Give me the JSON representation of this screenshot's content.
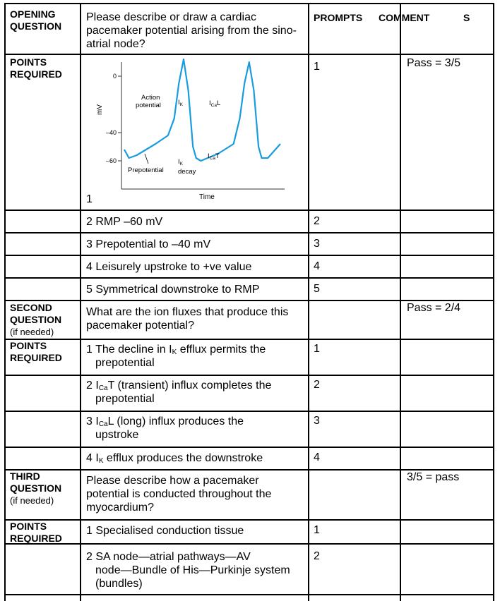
{
  "header": {
    "opening_label_line1": "OPENING",
    "opening_label_line2": "QUESTION",
    "opening_question": "Please describe or draw a cardiac pacemaker potential arising from the sino-atrial node?",
    "prompts_heading": "PROMPTS",
    "comments_heading": "COMMENT",
    "comments_heading_suffix": "S"
  },
  "section1": {
    "label_line1": "POINTS",
    "label_line2": "REQUIRED",
    "pass": "Pass = 3/5",
    "figure_number": "1",
    "points": [
      {
        "num": "2",
        "text": "RMP –60 mV",
        "prompt": "2"
      },
      {
        "num": "3",
        "text": "Prepotential to –40 mV",
        "prompt": "3"
      },
      {
        "num": "4",
        "text": "Leisurely upstroke to +ve value",
        "prompt": "4"
      },
      {
        "num": "5",
        "text": "Symmetrical downstroke to RMP",
        "prompt": "5"
      }
    ],
    "first_prompt": "1"
  },
  "chart_data": {
    "type": "line",
    "title": "",
    "xlabel": "Time",
    "ylabel": "mV",
    "yticks": [
      "0",
      "–40",
      "–60"
    ],
    "ylim": [
      -80,
      10
    ],
    "annotations": {
      "action_potential_line1": "Action",
      "action_potential_line2": "potential",
      "ik_top": "I",
      "ik_top_sub": "K",
      "ical": "I",
      "ical_sub": "Ca",
      "ical_suffix": "L",
      "ik_decay": "I",
      "ik_decay_sub": "K",
      "ik_decay_line2": "decay",
      "icat": "I",
      "icat_sub": "Ca",
      "icat_suffix": "T",
      "prepotential": "Prepotential"
    },
    "series": [
      {
        "values": [
          [
            0,
            -52
          ],
          [
            3,
            -58
          ],
          [
            8,
            -56
          ],
          [
            20,
            -48
          ],
          [
            28,
            -42
          ],
          [
            32,
            -30
          ],
          [
            35,
            -5
          ],
          [
            38,
            12
          ],
          [
            41,
            -10
          ],
          [
            44,
            -50
          ],
          [
            46,
            -58
          ],
          [
            49,
            -60
          ],
          [
            60,
            -55
          ],
          [
            70,
            -48
          ],
          [
            74,
            -30
          ],
          [
            77,
            -5
          ],
          [
            80,
            10
          ],
          [
            83,
            -10
          ],
          [
            86,
            -50
          ],
          [
            88,
            -58
          ],
          [
            92,
            -58
          ],
          [
            100,
            -48
          ]
        ]
      }
    ]
  },
  "section2": {
    "label_line1": "SECOND",
    "label_line2": "QUESTION",
    "label_line3": "(if needed)",
    "question": "What are the ion fluxes that produce this pacemaker potential?",
    "pass": "Pass = 2/4",
    "points_label_line1": "POINTS",
    "points_label_line2": "REQUIRED",
    "points": [
      {
        "num": "1",
        "pre": "The decline in I",
        "sub": "K",
        "post": " efflux permits the",
        "line2": "prepotential",
        "prompt": "1"
      },
      {
        "num": "2",
        "pre": "I",
        "sub": "Ca",
        "post": "T (transient) influx completes the",
        "line2": "prepotential",
        "prompt": "2"
      },
      {
        "num": "3",
        "pre": "I",
        "sub": "Ca",
        "post": "L (long) influx produces the",
        "line2": "upstroke",
        "prompt": "3"
      },
      {
        "num": "4",
        "pre": "I",
        "sub": "K",
        "post": " efflux produces the downstroke",
        "line2": "",
        "prompt": "4"
      }
    ]
  },
  "section3": {
    "label_line1": "THIRD",
    "label_line2": "QUESTION",
    "label_line3": "(if needed)",
    "question": "Please describe how a pacemaker potential is conducted throughout the myocardium?",
    "pass": "3/5 = pass",
    "points_label_line1": "POINTS",
    "points_label_line2": "REQUIRED",
    "point1": {
      "num": "1",
      "text": "Specialised conduction tissue",
      "prompt": "1"
    },
    "point2": {
      "num": "2",
      "line1": "SA node—atrial pathways—AV",
      "line2": "node—Bundle of His—Purkinje system",
      "line3": "(bundles)",
      "prompt": "2"
    }
  }
}
